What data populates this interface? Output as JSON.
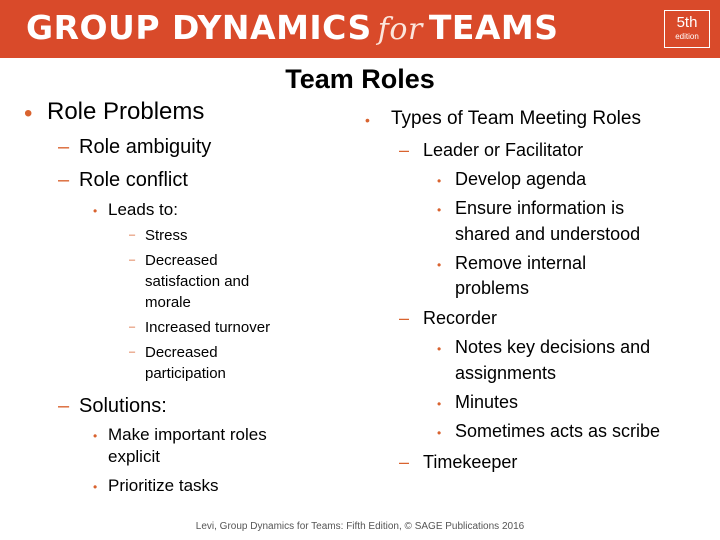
{
  "banner": {
    "title_part1": "GROUP DYNAMICS",
    "title_for": "for",
    "title_part2": "TEAMS",
    "edition_number": "5th",
    "edition_word": "edition",
    "background_color": "#d94a2a"
  },
  "slide_title": "Team Roles",
  "left_column": {
    "role_problems": "Role Problems",
    "role_ambiguity": "Role ambiguity",
    "role_conflict": "Role conflict",
    "leads_to": "Leads to:",
    "stress": "Stress",
    "decreased_satisfaction_line1": "Decreased",
    "decreased_satisfaction_line2": "satisfaction and",
    "decreased_satisfaction_line3": "morale",
    "increased_turnover": "Increased turnover",
    "decreased_participation_line1": "Decreased",
    "decreased_participation_line2": "participation",
    "solutions": "Solutions:",
    "make_roles_line1": "Make important roles",
    "make_roles_line2": "explicit",
    "prioritize_tasks": "Prioritize tasks"
  },
  "right_column": {
    "types_heading": "Types of Team Meeting Roles",
    "leader": "Leader or Facilitator",
    "develop_agenda": "Develop agenda",
    "ensure_info_line1": "Ensure information is",
    "ensure_info_line2": "shared and understood",
    "remove_internal_line1": "Remove internal",
    "remove_internal_line2": "problems",
    "recorder": "Recorder",
    "notes_key_line1": "Notes key decisions and",
    "notes_key_line2": "assignments",
    "minutes": "Minutes",
    "scribe": "Sometimes acts as scribe",
    "timekeeper": "Timekeeper"
  },
  "footer": "Levi, Group Dynamics for Teams: Fifth Edition, © SAGE Publications 2016",
  "accent_color": "#d9632f"
}
